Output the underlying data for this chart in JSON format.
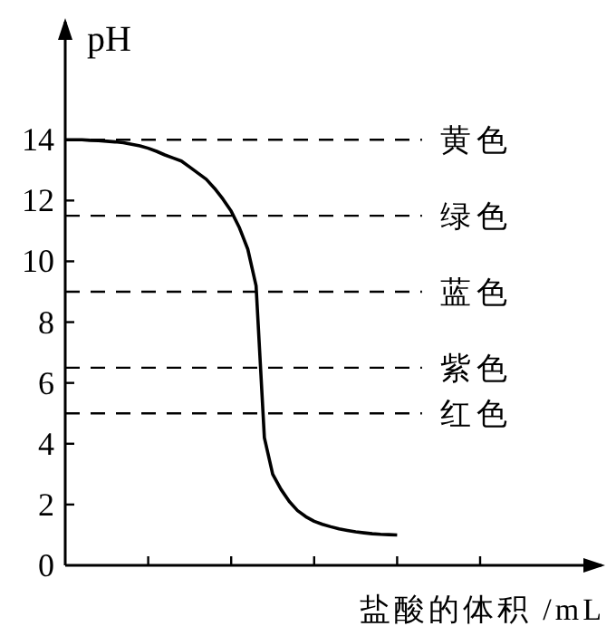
{
  "chart_data": {
    "type": "line",
    "ylabel": "pH",
    "xlabel": "盐酸的体积 /mL",
    "color": "#000000",
    "marker": "none",
    "line_style": "solid",
    "categories": [
      null,
      null,
      null,
      null,
      null,
      null,
      null,
      null,
      null,
      null,
      null,
      null,
      null,
      null,
      null,
      null,
      null,
      null,
      null,
      null,
      null,
      null,
      null,
      null,
      null,
      null,
      null,
      null,
      null,
      null,
      null,
      null,
      null,
      null,
      null,
      null,
      null,
      null,
      null,
      null,
      null,
      null,
      null,
      null,
      null,
      null,
      null,
      null,
      null,
      null,
      null
    ],
    "values": [
      14,
      14,
      14,
      13.98,
      13.97,
      13.95,
      13.93,
      13.9,
      13.85,
      13.8,
      13.72,
      13.62,
      13.5,
      13.4,
      13.3,
      13.1,
      12.9,
      12.7,
      12.4,
      12.05,
      11.65,
      11.1,
      10.4,
      9.2,
      4.2,
      3.0,
      2.5,
      2.1,
      1.8,
      1.6,
      1.45,
      1.35,
      1.27,
      1.2,
      1.15,
      1.1,
      1.07,
      1.04,
      1.02,
      1.01,
      1.0,
      null,
      null,
      null,
      null,
      null,
      null,
      null,
      null,
      null,
      null
    ],
    "ylim": [
      0,
      18
    ],
    "yticks": [
      0,
      2,
      4,
      6,
      8,
      10,
      12,
      14
    ],
    "ref_lines": [
      {
        "axis": "y",
        "value": 14,
        "label": "黄色",
        "line_style": "dashed",
        "color": "#000000"
      },
      {
        "axis": "y",
        "value": 11.5,
        "label": "绿色",
        "line_style": "dashed",
        "color": "#000000"
      },
      {
        "axis": "y",
        "value": 9,
        "label": "蓝色",
        "line_style": "dashed",
        "color": "#000000"
      },
      {
        "axis": "y",
        "value": 6.5,
        "label": "紫色",
        "line_style": "dashed",
        "color": "#000000"
      },
      {
        "axis": "y",
        "value": 5,
        "label": "红色",
        "line_style": "dashed",
        "color": "#000000"
      }
    ]
  }
}
